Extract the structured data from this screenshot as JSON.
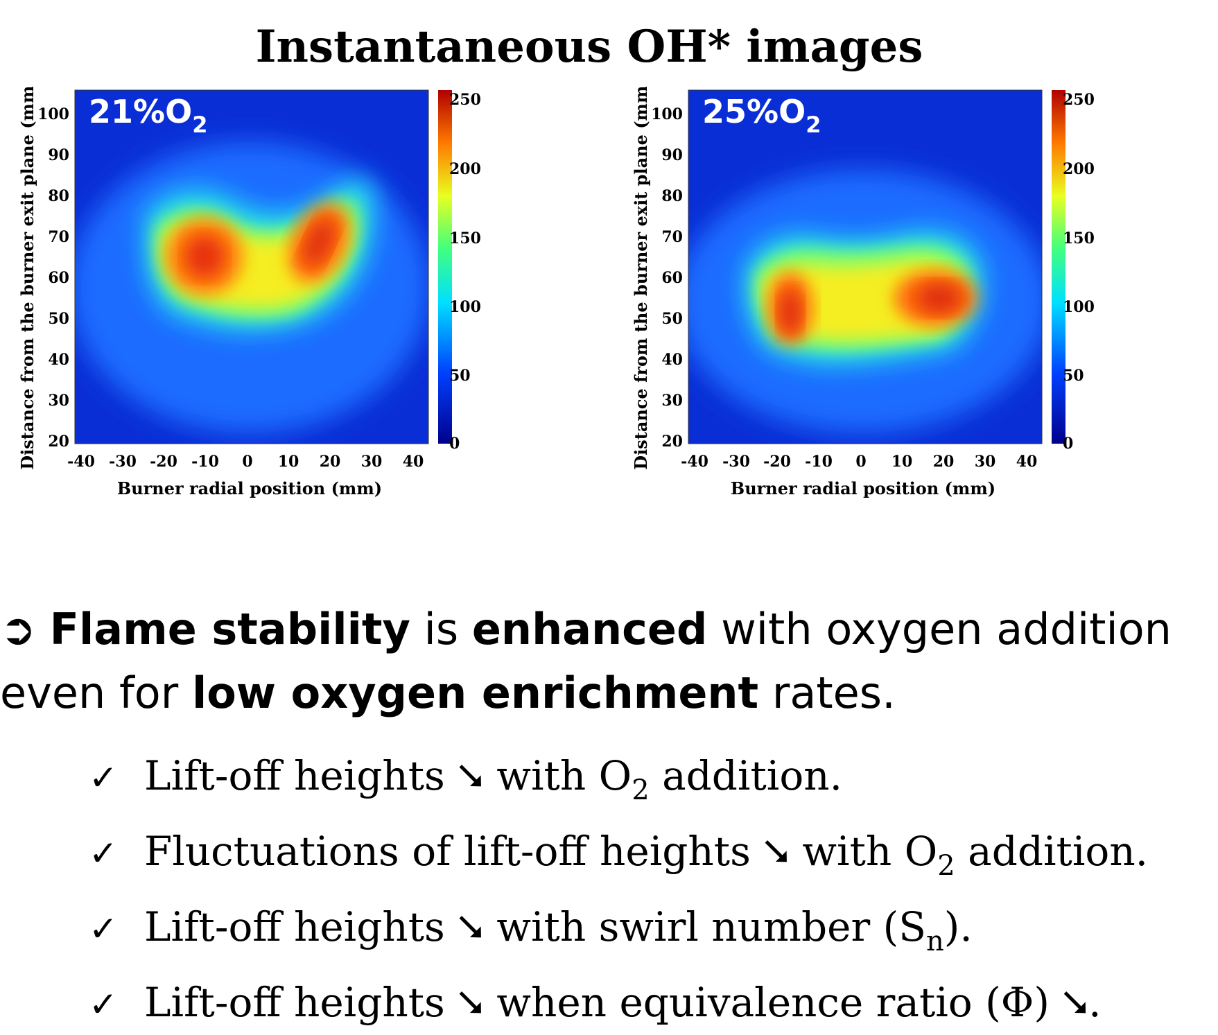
{
  "title": "Instantaneous OH* images",
  "colors": {
    "low": "#0000a0",
    "accent": "#d21c00"
  },
  "panels": [
    {
      "label": "21%O",
      "label_sub": "2",
      "y_axis_label": "Distance from the burner exit plane (mm)",
      "x_axis_label": "Burner radial position (mm)",
      "x_ticks": [
        "-40",
        "-30",
        "-20",
        "-10",
        "0",
        "10",
        "20",
        "30",
        "40"
      ],
      "y_ticks": [
        "100",
        "90",
        "80",
        "70",
        "60",
        "50",
        "40",
        "30",
        "20"
      ],
      "colorbar_ticks": [
        "250",
        "200",
        "150",
        "100",
        "50",
        "0"
      ]
    },
    {
      "label": "25%O",
      "label_sub": "2",
      "y_axis_label": "Distance from the burner exit plane (mm)",
      "x_axis_label": "Burner radial position (mm)",
      "x_ticks": [
        "-40",
        "-30",
        "-20",
        "-10",
        "0",
        "10",
        "20",
        "30",
        "40"
      ],
      "y_ticks": [
        "100",
        "90",
        "80",
        "70",
        "60",
        "50",
        "40",
        "30",
        "20"
      ],
      "colorbar_ticks": [
        "250",
        "200",
        "150",
        "100",
        "50",
        "0"
      ]
    }
  ],
  "conclusion": {
    "arrow": "➲",
    "p1": "Flame stability",
    "p2": " is ",
    "p3": "enhanced",
    "p4": " with oxygen addition",
    "p5": "even for ",
    "p6": "low oxygen enrichment",
    "p7": " rates."
  },
  "bullets": {
    "check": "✓",
    "b1a": "Lift-off heights ⭨ with O",
    "b1sub": "2",
    "b1b": " addition.",
    "b2a": "Fluctuations of lift-off heights ⭨ with O",
    "b2sub": "2",
    "b2b": " addition.",
    "b3a": "Lift-off heights ⭨ with swirl number (S",
    "b3sub": "n",
    "b3b": ").",
    "b4": "Lift-off heights ⭨ when equivalence ratio (Φ) ⭨."
  }
}
